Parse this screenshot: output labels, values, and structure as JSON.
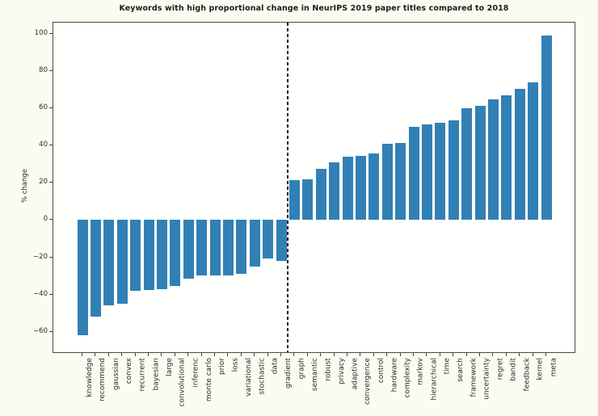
{
  "chart_data": {
    "type": "bar",
    "title": "Keywords with high proportional change in NeurIPS 2019 paper titles compared to 2018",
    "xlabel": "",
    "ylabel": "% change",
    "ylim": [
      -71.9,
      106.1
    ],
    "yticks": [
      100,
      80,
      60,
      40,
      20,
      0,
      -20,
      -40,
      -60
    ],
    "grid": false,
    "legend": null,
    "divider_after_category": "gradient",
    "categories": [
      "knowledge",
      "recommend",
      "gaussian",
      "convex",
      "recurrent",
      "bayesian",
      "large",
      "convolutional",
      "inferenc",
      "monte carlo",
      "prior",
      "loss",
      "variational",
      "stochastic",
      "data",
      "gradient",
      "graph",
      "semantic",
      "robust",
      "privacy",
      "adaptive",
      "convergence",
      "control",
      "hardware",
      "complexity",
      "markov",
      "hierarchical",
      "time",
      "search",
      "framework",
      "uncertainty",
      "regret",
      "bandit",
      "feedback",
      "kernel",
      "meta"
    ],
    "values": [
      -62,
      -52,
      -46,
      -45,
      -38,
      -37.5,
      -37,
      -35.5,
      -31.5,
      -30,
      -30,
      -30,
      -29,
      -25,
      -20.5,
      -22,
      21.5,
      22,
      27.5,
      31,
      34,
      34.5,
      36,
      41,
      41.5,
      50,
      51.5,
      52.5,
      53.5,
      60,
      61.5,
      65,
      67,
      70.5,
      74,
      99
    ]
  },
  "colors": {
    "bar": "#3180b5",
    "divider": "#161616",
    "frame": "#4a4a4a",
    "text": "#2b2b2b",
    "figure_bg": "#fcfbf2",
    "axes_bg": "#fffffd"
  }
}
